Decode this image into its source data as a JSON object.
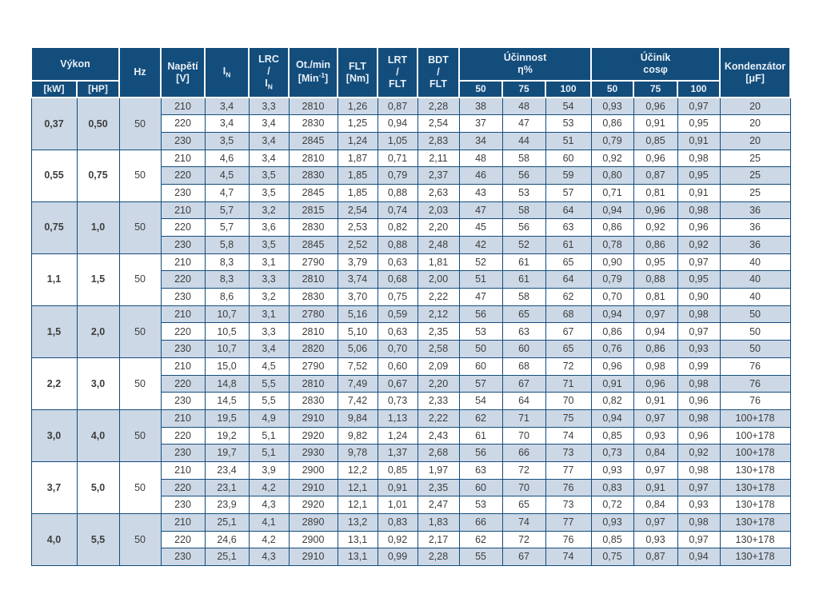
{
  "colors": {
    "navy": "#134d7c",
    "light_blue": "#ccd8e6",
    "header_text": "#e9f0f6",
    "body_text": "#3e3d3b"
  },
  "table": {
    "header": {
      "power": "Výkon",
      "kw": "[kW]",
      "hp": "[HP]",
      "hz": "Hz",
      "voltage_line1": "Napětí",
      "voltage_line2": "[V]",
      "current_main": "I",
      "current_sub": "N",
      "lrc": "LRC",
      "slash": "/",
      "rpm_line1": "Ot./min",
      "rpm_pre": "[Min",
      "rpm_sup": "-1",
      "rpm_post": "]",
      "flt_line1": "FLT",
      "flt_line2": "[Nm]",
      "lrt": "LRT",
      "bdt": "BDT",
      "flt_abbr": "FLT",
      "efficiency_line1": "Účinnost",
      "efficiency_line2": "η%",
      "powerfactor_line1": "Účiník",
      "powerfactor_line2": "cosφ",
      "capacitor_line1": "Kondenzátor",
      "capacitor_line2": "[μF]",
      "load_levels": [
        "50",
        "75",
        "100"
      ]
    },
    "column_names": [
      "cell-voltage",
      "cell-in",
      "cell-lrc-in",
      "cell-rpm",
      "cell-flt",
      "cell-lrt-flt",
      "cell-bdt-flt",
      "cell-eff-50",
      "cell-eff-75",
      "cell-eff-100",
      "cell-cos-50",
      "cell-cos-75",
      "cell-cos-100",
      "cell-capacitor"
    ],
    "groups": [
      {
        "kw": "0,37",
        "hp": "0,50",
        "hz": "50",
        "shade": "blue",
        "rows": [
          [
            "210",
            "3,4",
            "3,3",
            "2810",
            "1,26",
            "0,87",
            "2,28",
            "38",
            "48",
            "54",
            "0,93",
            "0,96",
            "0,97",
            "20"
          ],
          [
            "220",
            "3,4",
            "3,4",
            "2830",
            "1,25",
            "0,94",
            "2,54",
            "37",
            "47",
            "53",
            "0,86",
            "0,91",
            "0,95",
            "20"
          ],
          [
            "230",
            "3,5",
            "3,4",
            "2845",
            "1,24",
            "1,05",
            "2,83",
            "34",
            "44",
            "51",
            "0,79",
            "0,85",
            "0,91",
            "20"
          ]
        ]
      },
      {
        "kw": "0,55",
        "hp": "0,75",
        "hz": "50",
        "shade": "white",
        "rows": [
          [
            "210",
            "4,6",
            "3,4",
            "2810",
            "1,87",
            "0,71",
            "2,11",
            "48",
            "58",
            "60",
            "0,92",
            "0,96",
            "0,98",
            "25"
          ],
          [
            "220",
            "4,5",
            "3,5",
            "2830",
            "1,85",
            "0,79",
            "2,37",
            "46",
            "56",
            "59",
            "0,80",
            "0,87",
            "0,95",
            "25"
          ],
          [
            "230",
            "4,7",
            "3,5",
            "2845",
            "1,85",
            "0,88",
            "2,63",
            "43",
            "53",
            "57",
            "0,71",
            "0,81",
            "0,91",
            "25"
          ]
        ]
      },
      {
        "kw": "0,75",
        "hp": "1,0",
        "hz": "50",
        "shade": "blue",
        "rows": [
          [
            "210",
            "5,7",
            "3,2",
            "2815",
            "2,54",
            "0,74",
            "2,03",
            "47",
            "58",
            "64",
            "0,94",
            "0,96",
            "0,98",
            "36"
          ],
          [
            "220",
            "5,7",
            "3,6",
            "2830",
            "2,53",
            "0,82",
            "2,20",
            "45",
            "56",
            "63",
            "0,86",
            "0,92",
            "0,96",
            "36"
          ],
          [
            "230",
            "5,8",
            "3,5",
            "2845",
            "2,52",
            "0,88",
            "2,48",
            "42",
            "52",
            "61",
            "0,78",
            "0,86",
            "0,92",
            "36"
          ]
        ]
      },
      {
        "kw": "1,1",
        "hp": "1,5",
        "hz": "50",
        "shade": "white",
        "rows": [
          [
            "210",
            "8,3",
            "3,1",
            "2790",
            "3,79",
            "0,63",
            "1,81",
            "52",
            "61",
            "65",
            "0,90",
            "0,95",
            "0,97",
            "40"
          ],
          [
            "220",
            "8,3",
            "3,3",
            "2810",
            "3,74",
            "0,68",
            "2,00",
            "51",
            "61",
            "64",
            "0,79",
            "0,88",
            "0,95",
            "40"
          ],
          [
            "230",
            "8,6",
            "3,2",
            "2830",
            "3,70",
            "0,75",
            "2,22",
            "47",
            "58",
            "62",
            "0,70",
            "0,81",
            "0,90",
            "40"
          ]
        ]
      },
      {
        "kw": "1,5",
        "hp": "2,0",
        "hz": "50",
        "shade": "blue",
        "rows": [
          [
            "210",
            "10,7",
            "3,1",
            "2780",
            "5,16",
            "0,59",
            "2,12",
            "56",
            "65",
            "68",
            "0,94",
            "0,97",
            "0,98",
            "50"
          ],
          [
            "220",
            "10,5",
            "3,3",
            "2810",
            "5,10",
            "0,63",
            "2,35",
            "53",
            "63",
            "67",
            "0,86",
            "0,94",
            "0,97",
            "50"
          ],
          [
            "230",
            "10,7",
            "3,4",
            "2820",
            "5,06",
            "0,70",
            "2,58",
            "50",
            "60",
            "65",
            "0,76",
            "0,86",
            "0,93",
            "50"
          ]
        ]
      },
      {
        "kw": "2,2",
        "hp": "3,0",
        "hz": "50",
        "shade": "white",
        "rows": [
          [
            "210",
            "15,0",
            "4,5",
            "2790",
            "7,52",
            "0,60",
            "2,09",
            "60",
            "68",
            "72",
            "0,96",
            "0,98",
            "0,99",
            "76"
          ],
          [
            "220",
            "14,8",
            "5,5",
            "2810",
            "7,49",
            "0,67",
            "2,20",
            "57",
            "67",
            "71",
            "0,91",
            "0,96",
            "0,98",
            "76"
          ],
          [
            "230",
            "14,5",
            "5,5",
            "2830",
            "7,42",
            "0,73",
            "2,33",
            "54",
            "64",
            "70",
            "0,82",
            "0,91",
            "0,96",
            "76"
          ]
        ]
      },
      {
        "kw": "3,0",
        "hp": "4,0",
        "hz": "50",
        "shade": "blue",
        "rows": [
          [
            "210",
            "19,5",
            "4,9",
            "2910",
            "9,84",
            "1,13",
            "2,22",
            "62",
            "71",
            "75",
            "0,94",
            "0,97",
            "0,98",
            "100+178"
          ],
          [
            "220",
            "19,2",
            "5,1",
            "2920",
            "9,82",
            "1,24",
            "2,43",
            "61",
            "70",
            "74",
            "0,85",
            "0,93",
            "0,96",
            "100+178"
          ],
          [
            "230",
            "19,7",
            "5,1",
            "2930",
            "9,78",
            "1,37",
            "2,68",
            "56",
            "66",
            "73",
            "0,73",
            "0,84",
            "0,92",
            "100+178"
          ]
        ]
      },
      {
        "kw": "3,7",
        "hp": "5,0",
        "hz": "50",
        "shade": "white",
        "rows": [
          [
            "210",
            "23,4",
            "3,9",
            "2900",
            "12,2",
            "0,85",
            "1,97",
            "63",
            "72",
            "77",
            "0,93",
            "0,97",
            "0,98",
            "130+178"
          ],
          [
            "220",
            "23,1",
            "4,2",
            "2910",
            "12,1",
            "0,91",
            "2,35",
            "60",
            "70",
            "76",
            "0,83",
            "0,91",
            "0,97",
            "130+178"
          ],
          [
            "230",
            "23,9",
            "4,3",
            "2920",
            "12,1",
            "1,01",
            "2,47",
            "53",
            "65",
            "73",
            "0,72",
            "0,84",
            "0,93",
            "130+178"
          ]
        ]
      },
      {
        "kw": "4,0",
        "hp": "5,5",
        "hz": "50",
        "shade": "blue",
        "rows": [
          [
            "210",
            "25,1",
            "4,1",
            "2890",
            "13,2",
            "0,83",
            "1,83",
            "66",
            "74",
            "77",
            "0,93",
            "0,97",
            "0,98",
            "130+178"
          ],
          [
            "220",
            "24,6",
            "4,2",
            "2900",
            "13,1",
            "0,92",
            "2,17",
            "62",
            "72",
            "76",
            "0,85",
            "0,93",
            "0,97",
            "130+178"
          ],
          [
            "230",
            "25,1",
            "4,3",
            "2910",
            "13,1",
            "0,99",
            "2,28",
            "55",
            "67",
            "74",
            "0,75",
            "0,87",
            "0,94",
            "130+178"
          ]
        ]
      }
    ]
  }
}
